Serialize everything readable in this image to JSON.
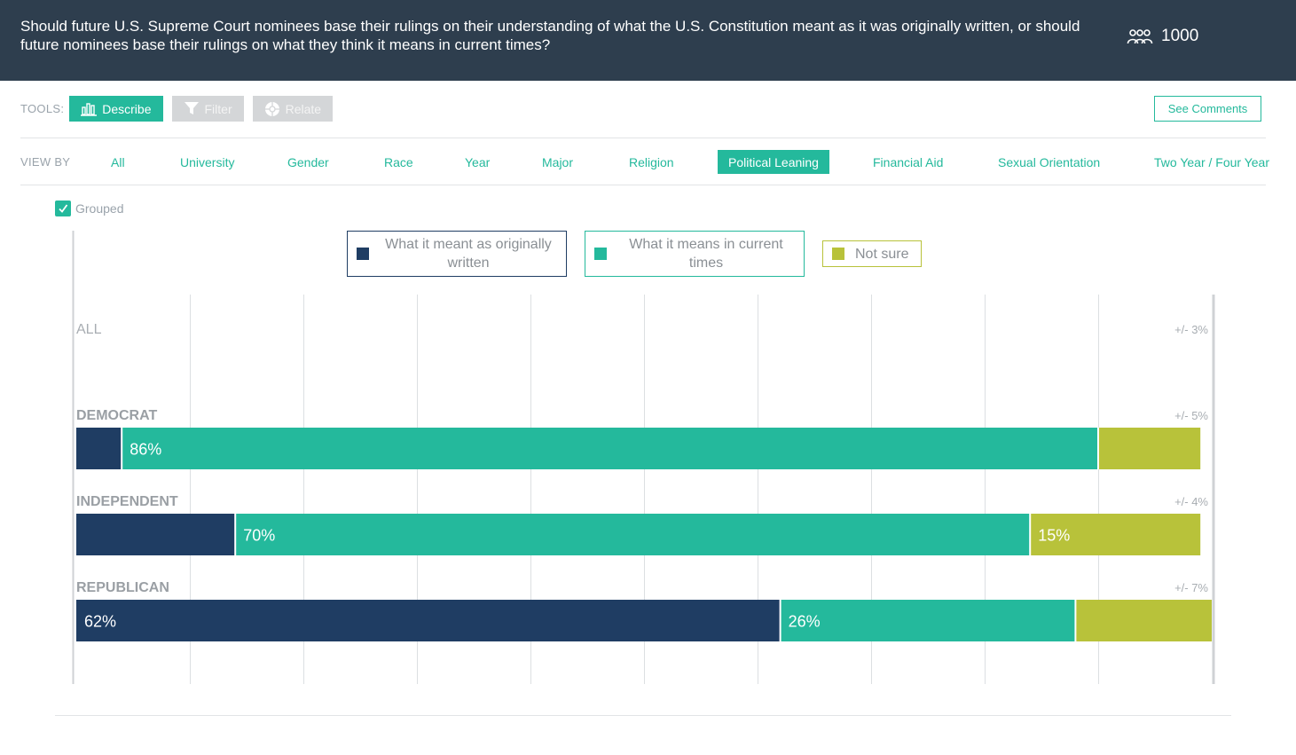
{
  "header": {
    "question": "Should future U.S. Supreme Court nominees base their rulings on their understanding of what the U.S. Constitution meant as it was originally written, or should future nominees base their rulings on what they think it means in current times?",
    "respondents_icon": "people-icon",
    "respondents": "1000"
  },
  "tools": {
    "label": "TOOLS:",
    "describe": "Describe",
    "describe_icon": "bar-chart-icon",
    "filter": "Filter",
    "filter_icon": "funnel-icon",
    "relate": "Relate",
    "relate_icon": "relate-icon",
    "see_comments": "See Comments"
  },
  "view_by": {
    "label": "VIEW BY",
    "items": [
      "All",
      "University",
      "Gender",
      "Race",
      "Year",
      "Major",
      "Religion",
      "Political Leaning",
      "Financial Aid",
      "Sexual Orientation",
      "Two Year / Four Year"
    ],
    "selected": "Political Leaning"
  },
  "grouped": {
    "label": "Grouped",
    "checked": true
  },
  "colors": {
    "accent": "#24b99c",
    "header_bg": "#2e3e4e",
    "original": "#1f3d63",
    "current": "#24b99c",
    "not_sure": "#b8c23a"
  },
  "chart_data": {
    "type": "bar",
    "orientation": "horizontal",
    "stacked": true,
    "legend": [
      "What it meant as originally written",
      "What it means in current times",
      "Not sure"
    ],
    "series": [
      {
        "name": "What it meant as originally written",
        "color": "#1f3d63",
        "values": [
          null,
          4,
          14,
          62
        ]
      },
      {
        "name": "What it means in current times",
        "color": "#24b99c",
        "values": [
          null,
          86,
          70,
          26
        ]
      },
      {
        "name": "Not sure",
        "color": "#b8c23a",
        "values": [
          null,
          9,
          15,
          12
        ]
      }
    ],
    "categories": [
      "ALL",
      "DEMOCRAT",
      "INDEPENDENT",
      "REPUBLICAN"
    ],
    "margins_of_error": [
      "+/- 3%",
      "+/- 5%",
      "+/- 4%",
      "+/- 7%"
    ],
    "data_labels": [
      [
        null,
        null,
        null
      ],
      [
        null,
        "86%",
        null
      ],
      [
        null,
        "70%",
        "15%"
      ],
      [
        "62%",
        "26%",
        null
      ]
    ],
    "xlim": [
      0,
      100
    ],
    "grid": true
  }
}
